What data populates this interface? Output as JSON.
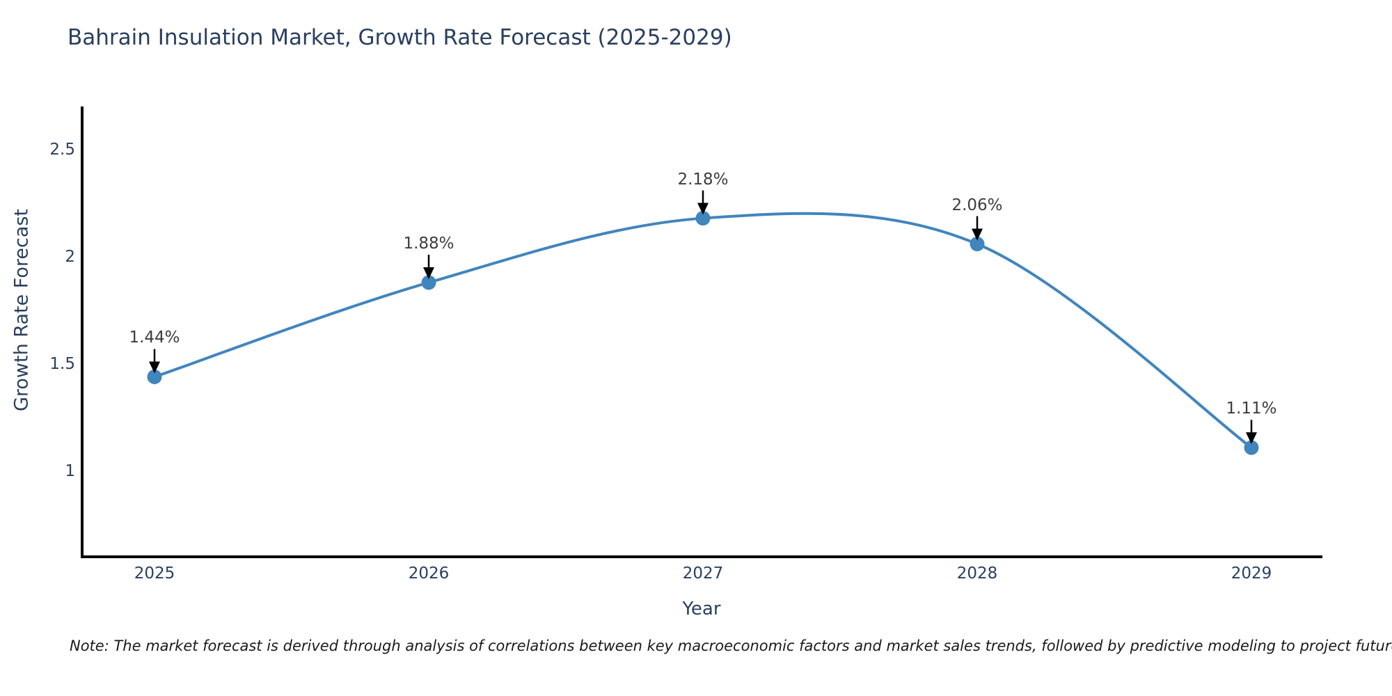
{
  "title": "Bahrain Insulation Market, Growth Rate Forecast (2025-2029)",
  "note": "Note: The market forecast is derived through analysis of correlations between key macroeconomic factors and market sales trends, followed by predictive modeling to project future sales",
  "chart_data": {
    "type": "line",
    "title": "Bahrain Insulation Market, Growth Rate Forecast (2025-2029)",
    "xlabel": "Year",
    "ylabel": "Growth Rate Forecast",
    "x": [
      2025,
      2026,
      2027,
      2028,
      2029
    ],
    "xtick_labels": [
      "2025",
      "2026",
      "2027",
      "2028",
      "2029"
    ],
    "series": [
      {
        "name": "Growth Rate Forecast",
        "values": [
          1.44,
          1.88,
          2.18,
          2.06,
          1.11
        ]
      }
    ],
    "point_labels": [
      "1.44%",
      "1.88%",
      "2.18%",
      "2.06%",
      "1.11%"
    ],
    "yticks": [
      1,
      1.5,
      2,
      2.5
    ],
    "ytick_labels": [
      "1",
      "1.5",
      "2",
      "2.5"
    ],
    "ylim": [
      0.6,
      2.7
    ],
    "line_shape": "spline",
    "grid": false,
    "legend": "none",
    "colors": {
      "line": "#4185bd",
      "marker": "#4185bd",
      "axis": "#000000",
      "title_text": "#2a3f5f",
      "tick_text": "#2a3f5f",
      "annotation_text": "#3d3d3d",
      "annotation_arrow": "#000000",
      "background": "#ffffff"
    }
  }
}
